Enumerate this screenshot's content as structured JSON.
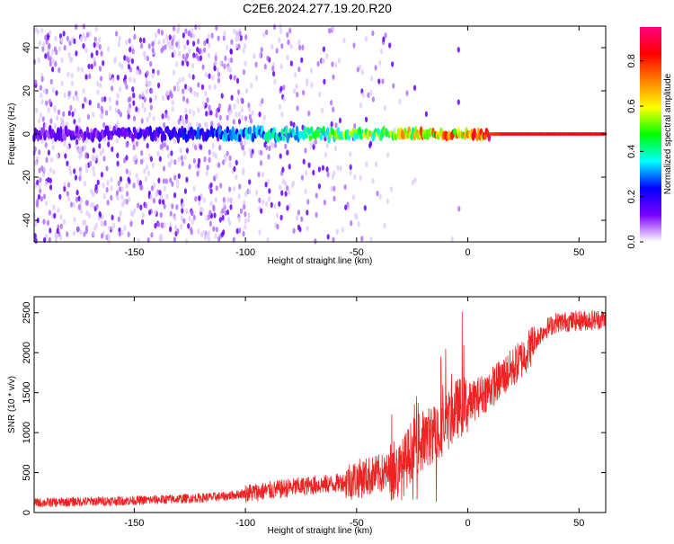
{
  "title": "C2E6.2024.277.19.20.R20",
  "chart_data": [
    {
      "type": "heatmap",
      "xlabel": "Height of straight line (km)",
      "ylabel": "Frequency (Hz)",
      "xlim": [
        -195,
        62
      ],
      "ylim": [
        -50,
        50
      ],
      "xticks": [
        -150,
        -100,
        -50,
        0,
        50
      ],
      "yticks": [
        -40,
        -20,
        0,
        20,
        40
      ],
      "colorbar": {
        "label": "Normalized spectral amplitude",
        "ticks": [
          0.0,
          0.2,
          0.4,
          0.6,
          0.8
        ],
        "range": [
          0,
          0.95
        ],
        "colors": [
          "#ffffff",
          "#7b00ff",
          "#0000ff",
          "#00ffff",
          "#00ff00",
          "#ffff00",
          "#ff8000",
          "#ff0000",
          "#ff0080"
        ]
      },
      "ridge": {
        "description_values": [
          [
            -195,
            0.18
          ],
          [
            -150,
            0.22
          ],
          [
            -120,
            0.3
          ],
          [
            -100,
            0.38
          ],
          [
            -80,
            0.45
          ],
          [
            -60,
            0.55
          ],
          [
            -40,
            0.62
          ],
          [
            -20,
            0.72
          ],
          [
            0,
            0.78
          ],
          [
            15,
            0.88
          ],
          [
            62,
            0.9
          ]
        ]
      }
    },
    {
      "type": "line",
      "xlabel": "Height of straight line (km)",
      "ylabel": "SNR (10 * v/v)",
      "xlim": [
        -195,
        62
      ],
      "ylim": [
        0,
        2700
      ],
      "xticks": [
        -150,
        -100,
        -50,
        0,
        50
      ],
      "yticks": [
        0,
        500,
        1000,
        1500,
        2000,
        2500
      ],
      "series": [
        {
          "color": "#ee2222",
          "envelope": [
            [
              -195,
              120
            ],
            [
              -170,
              140
            ],
            [
              -150,
              150
            ],
            [
              -130,
              170
            ],
            [
              -110,
              200
            ],
            [
              -100,
              240
            ],
            [
              -90,
              270
            ],
            [
              -80,
              310
            ],
            [
              -70,
              340
            ],
            [
              -60,
              360
            ],
            [
              -50,
              420
            ],
            [
              -40,
              480
            ],
            [
              -30,
              520
            ],
            [
              -25,
              800
            ],
            [
              -20,
              900
            ],
            [
              -15,
              1000
            ],
            [
              -10,
              1100
            ],
            [
              -5,
              1300
            ],
            [
              0,
              1350
            ],
            [
              5,
              1450
            ],
            [
              10,
              1550
            ],
            [
              20,
              1800
            ],
            [
              25,
              1950
            ],
            [
              30,
              2150
            ],
            [
              35,
              2300
            ],
            [
              40,
              2380
            ],
            [
              50,
              2400
            ],
            [
              62,
              2420
            ]
          ]
        }
      ]
    }
  ]
}
